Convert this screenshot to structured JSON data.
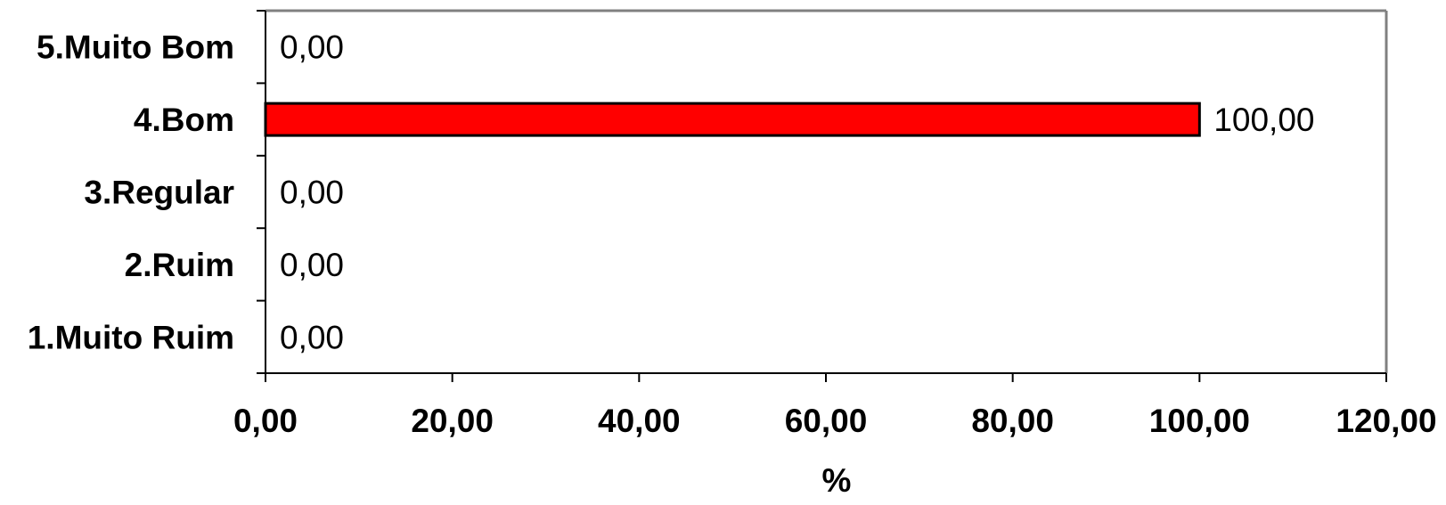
{
  "chart_data": {
    "type": "bar",
    "orientation": "horizontal",
    "categories": [
      "5.Muito Bom",
      "4.Bom",
      "3.Regular",
      "2.Ruim",
      "1.Muito Ruim"
    ],
    "values": [
      0,
      100,
      0,
      0,
      0
    ],
    "value_labels": [
      "0,00",
      "100,00",
      "0,00",
      "0,00",
      "0,00"
    ],
    "xlabel": "%",
    "ylabel": "",
    "xlim": [
      0,
      120
    ],
    "x_ticks": [
      0,
      20,
      40,
      60,
      80,
      100,
      120
    ],
    "x_tick_labels": [
      "0,00",
      "20,00",
      "40,00",
      "60,00",
      "80,00",
      "100,00",
      "120,00"
    ],
    "grid": false,
    "legend": "none",
    "colors": {
      "bar": "#ff0000",
      "bar_border": "#000000",
      "frame": "#808080"
    }
  }
}
